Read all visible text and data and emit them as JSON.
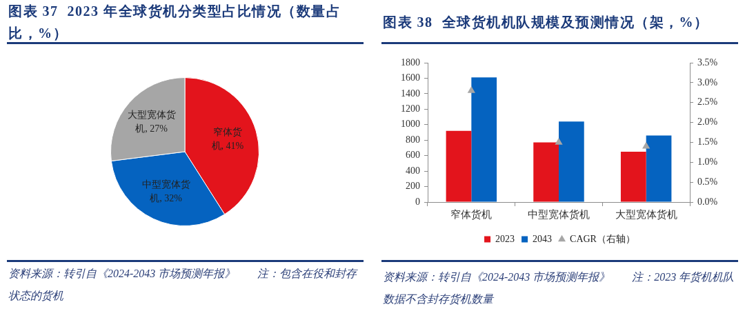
{
  "chart_data": [
    {
      "type": "pie",
      "title": "图表 37  2023 年全球货机分类型占比情况（数量占比，%）",
      "categories": [
        "窄体货机",
        "中型宽体货机",
        "大型宽体货机"
      ],
      "values": [
        41,
        32,
        27
      ],
      "colors": [
        "#e3141c",
        "#0563c0",
        "#a6a6a6"
      ],
      "value_labels": [
        "41%",
        "32%",
        "27%"
      ],
      "annotations": [
        "资料来源：转引自《2024-2043 市场预测年报》",
        "注：包含在役和封存状态的货机"
      ]
    },
    {
      "type": "bar",
      "title": "图表 38  全球货机机队规模及预测情况（架，%）",
      "categories": [
        "窄体货机",
        "中型宽体货机",
        "大型宽体货机"
      ],
      "series": [
        {
          "name": "2023",
          "color": "#e3141c",
          "values": [
            920,
            770,
            650
          ]
        },
        {
          "name": "2043",
          "color": "#0563c0",
          "values": [
            1610,
            1040,
            860
          ]
        },
        {
          "name": "CAGR（右轴）",
          "type": "scatter",
          "axis": "y2",
          "color": "#a6a6a6",
          "values": [
            2.8,
            1.5,
            1.4
          ]
        }
      ],
      "ylim": [
        0,
        1800
      ],
      "yticks": [
        0,
        200,
        400,
        600,
        800,
        1000,
        1200,
        1400,
        1600,
        1800
      ],
      "y2lim": [
        0,
        3.5
      ],
      "y2ticks": [
        {
          "value": 0,
          "label": "0.0%"
        },
        {
          "value": 0.5,
          "label": "0.5%"
        },
        {
          "value": 1,
          "label": "1.0%"
        },
        {
          "value": 1.5,
          "label": "1.5%"
        },
        {
          "value": 2,
          "label": "2.0%"
        },
        {
          "value": 2.5,
          "label": "2.5%"
        },
        {
          "value": 3,
          "label": "3.0%"
        },
        {
          "value": 3.5,
          "label": "3.5%"
        }
      ],
      "legend": "bottom",
      "marker": "triangle",
      "annotations": [
        "资料来源：转引自《2024-2043 市场预测年报》",
        "注：2023 年货机机队数据不含封存货机数量"
      ]
    }
  ]
}
